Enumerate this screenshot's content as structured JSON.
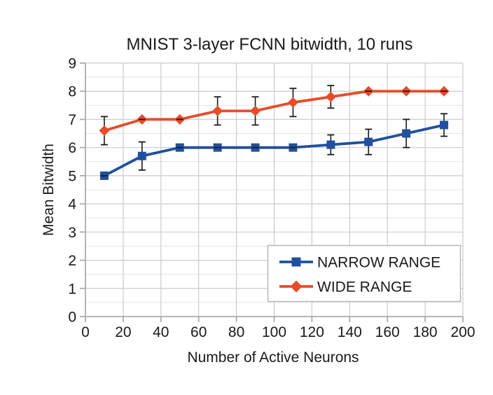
{
  "chart_data": {
    "type": "line",
    "title": "MNIST 3-layer FCNN bitwidth, 10 runs",
    "xlabel": "Number of Active Neurons",
    "ylabel": "Mean Bitwidth",
    "xlim": [
      0,
      200
    ],
    "ylim": [
      0,
      9
    ],
    "x_ticks": [
      0,
      20,
      40,
      60,
      80,
      100,
      120,
      140,
      160,
      180,
      200
    ],
    "y_ticks": [
      0,
      1,
      2,
      3,
      4,
      5,
      6,
      7,
      8,
      9
    ],
    "grid": {
      "y_minor_step": 0.5,
      "y_major_step": 1,
      "x_major_step": 20
    },
    "legend_position": "bottom-right",
    "x": [
      10,
      30,
      50,
      70,
      90,
      110,
      130,
      150,
      170,
      190
    ],
    "series": [
      {
        "name": "NARROW RANGE",
        "marker": "square",
        "color": "#20509E",
        "values": [
          5.0,
          5.7,
          6.0,
          6.0,
          6.0,
          6.0,
          6.1,
          6.2,
          6.5,
          6.8
        ],
        "errors": [
          0,
          0.5,
          0,
          0,
          0,
          0,
          0.35,
          0.45,
          0.5,
          0.4
        ]
      },
      {
        "name": "WIDE RANGE",
        "marker": "diamond",
        "color": "#E74C28",
        "values": [
          6.6,
          7.0,
          7.0,
          7.3,
          7.3,
          7.6,
          7.8,
          8.0,
          8.0,
          8.0
        ],
        "errors": [
          0.5,
          0,
          0,
          0.5,
          0.5,
          0.5,
          0.4,
          0,
          0,
          0
        ]
      }
    ],
    "colors": {
      "grid_minor": "#E3E3E3",
      "grid_major": "#CBCBCB",
      "axis": "#ABABAB",
      "error_bar": "#1A1A1A",
      "text": "#1A1A1A",
      "legend_border": "#B8B8B8"
    }
  }
}
